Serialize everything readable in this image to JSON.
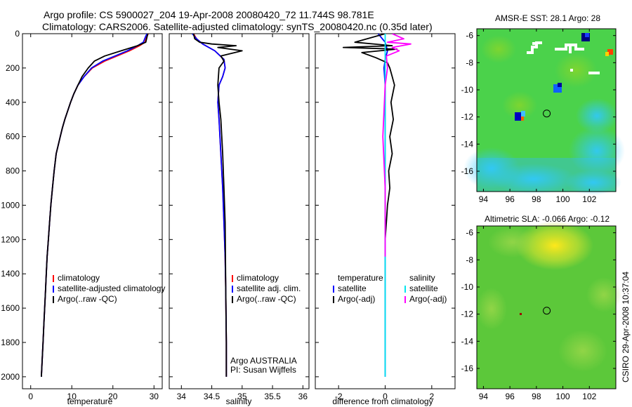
{
  "page": {
    "title_line1": "Argo profile: CS 5900027_204 19-Apr-2008 20080420_72 11.744S 98.781E",
    "title_line2": "Climatology: CARS2006. Satellite-adjusted climatology: synTS_20080420.nc (0.35d later)",
    "side_text": "CSIRO 29-Apr-2008 10:37:04"
  },
  "chart_data": [
    {
      "type": "line",
      "xlabel": "temperature",
      "xlim": [
        -2,
        32
      ],
      "ylim": [
        2070,
        0
      ],
      "xticks": [
        0,
        10,
        20,
        30
      ],
      "yticks": [
        0,
        200,
        400,
        600,
        800,
        1000,
        1200,
        1400,
        1600,
        1800,
        2000
      ],
      "legend": [
        "climatology",
        "satellite-adjusted climatology",
        "Argo(..raw -QC)"
      ],
      "series": [
        {
          "name": "climatology",
          "color": "#ff0000",
          "x": [
            28.6,
            28.2,
            27.8,
            26.5,
            24,
            21,
            18,
            15,
            13,
            11.5,
            10.5,
            9.7,
            9,
            8.3,
            7.7,
            7.2,
            6.7,
            6.2,
            5.7,
            5.3,
            4.9,
            4.6,
            4.3,
            4,
            3.8,
            3.6,
            3.4,
            3.2,
            3,
            2.9,
            2.8,
            2.7,
            2.6
          ],
          "y": [
            0,
            20,
            50,
            70,
            100,
            130,
            160,
            200,
            250,
            300,
            350,
            400,
            450,
            500,
            550,
            600,
            650,
            700,
            800,
            900,
            1000,
            1100,
            1200,
            1300,
            1400,
            1500,
            1600,
            1700,
            1800,
            1850,
            1900,
            1950,
            2000
          ]
        },
        {
          "name": "satellite-adjusted climatology",
          "color": "#0000ff",
          "x": [
            28.3,
            27.9,
            27.4,
            26,
            23.5,
            20.5,
            17.5,
            14.8,
            13,
            11.5,
            10.5,
            9.7,
            9,
            8.3,
            7.7,
            7.2,
            6.7,
            6.2,
            5.7,
            5.3,
            4.9,
            4.6,
            4.3,
            4,
            3.8,
            3.6,
            3.4,
            3.2,
            3,
            2.9,
            2.8,
            2.7,
            2.6
          ],
          "y": [
            0,
            20,
            50,
            70,
            100,
            130,
            160,
            200,
            250,
            300,
            350,
            400,
            450,
            500,
            550,
            600,
            650,
            700,
            800,
            900,
            1000,
            1100,
            1200,
            1300,
            1400,
            1500,
            1600,
            1700,
            1800,
            1850,
            1900,
            1950,
            2000
          ]
        },
        {
          "name": "Argo(..raw -QC)",
          "color": "#000000",
          "x": [
            28.5,
            28.3,
            28,
            26,
            22,
            18,
            15.5,
            14,
            12.5,
            11.5,
            10.5,
            9.7,
            9,
            8.3,
            7.7,
            7.2,
            6.7,
            6.2,
            5.7,
            5.3,
            4.9,
            4.6,
            4.3,
            4,
            3.8,
            3.6,
            3.4,
            3.2,
            3,
            2.9,
            2.8,
            2.7,
            2.6
          ],
          "y": [
            0,
            20,
            50,
            70,
            100,
            130,
            160,
            200,
            250,
            300,
            350,
            400,
            450,
            500,
            550,
            600,
            650,
            700,
            800,
            900,
            1000,
            1100,
            1200,
            1300,
            1400,
            1500,
            1600,
            1700,
            1800,
            1850,
            1900,
            1950,
            2000
          ]
        }
      ]
    },
    {
      "type": "line",
      "xlabel": "salinity",
      "xlim": [
        33.8,
        36.1
      ],
      "ylim": [
        2070,
        0
      ],
      "xticks": [
        34,
        34.5,
        35,
        35.5,
        36
      ],
      "legend": [
        "climatology",
        "satellite adj. clim.",
        "Argo(..raw -QC)"
      ],
      "annotation": [
        "Argo AUSTRALIA",
        "PI: Susan Wijffels"
      ],
      "series": [
        {
          "name": "climatology",
          "color": "#ff0000",
          "x": [
            34.2,
            34.25,
            34.35,
            34.55,
            34.7,
            34.72,
            34.68,
            34.62,
            34.6,
            34.62,
            34.65,
            34.68,
            34.7,
            34.72,
            34.73,
            34.74,
            34.74
          ],
          "y": [
            0,
            30,
            60,
            100,
            150,
            200,
            250,
            300,
            400,
            500,
            700,
            900,
            1100,
            1300,
            1500,
            1800,
            2000
          ]
        },
        {
          "name": "satellite adj. clim.",
          "color": "#0000ff",
          "x": [
            34.18,
            34.25,
            34.35,
            34.55,
            34.7,
            34.72,
            34.68,
            34.62,
            34.6,
            34.62,
            34.65,
            34.68,
            34.7,
            34.72,
            34.73,
            34.74,
            34.74
          ],
          "y": [
            0,
            30,
            60,
            100,
            150,
            200,
            250,
            300,
            400,
            500,
            700,
            900,
            1100,
            1300,
            1500,
            1800,
            2000
          ]
        },
        {
          "name": "Argo(..raw -QC)",
          "color": "#000000",
          "x": [
            34.2,
            34.22,
            34.3,
            34.5,
            34.9,
            34.6,
            35.0,
            34.65,
            34.7,
            34.62,
            34.6,
            34.62,
            34.65,
            34.68,
            34.7,
            34.72,
            34.73,
            34.74,
            34.74
          ],
          "y": [
            0,
            30,
            50,
            60,
            70,
            80,
            100,
            130,
            160,
            200,
            300,
            400,
            500,
            700,
            900,
            1100,
            1500,
            1800,
            2000
          ]
        }
      ]
    },
    {
      "type": "line",
      "xlabel": "difference from climatology",
      "xlim": [
        -3,
        3
      ],
      "ylim": [
        2070,
        0
      ],
      "xticks": [
        -2,
        0,
        2
      ],
      "legend_headers": [
        "temperature",
        "salinity"
      ],
      "legend": [
        "satellite",
        "Argo(-adj)",
        "satellite",
        "Argo(-adj)"
      ],
      "series": [
        {
          "name": "satellite",
          "color": "#0000ff",
          "x": [
            -0.3,
            0,
            0.1,
            0,
            -0.05,
            0,
            0,
            0,
            0
          ],
          "y": [
            0,
            50,
            100,
            150,
            200,
            300,
            500,
            1000,
            2000
          ]
        },
        {
          "name": "Argo(-adj)",
          "color": "#000000",
          "x": [
            0,
            -1.3,
            0.3,
            -1.8,
            0.5,
            -1.0,
            -0.4,
            0.1,
            0.2,
            0.3,
            0.4,
            0.25,
            0.35,
            0.2,
            0.3,
            0.15,
            0.2,
            0.1,
            0.05,
            0
          ],
          "y": [
            0,
            50,
            70,
            80,
            90,
            110,
            140,
            170,
            200,
            250,
            300,
            400,
            500,
            600,
            700,
            800,
            900,
            1000,
            1100,
            1200
          ]
        },
        {
          "name": "satellite",
          "color": "#00e5ee",
          "x": [
            0,
            0,
            0,
            0
          ],
          "y": [
            0,
            500,
            1500,
            2000
          ]
        },
        {
          "name": "Argo(-adj)",
          "color": "#ff00ff",
          "x": [
            0.3,
            0.8,
            0.1,
            1.1,
            0.3,
            0.6,
            0.05,
            0.1,
            0,
            -0.1,
            0,
            0
          ],
          "y": [
            0,
            30,
            50,
            60,
            80,
            100,
            130,
            200,
            300,
            600,
            900,
            1300
          ]
        }
      ]
    },
    {
      "type": "heatmap",
      "title": "AMSR-E SST: 28.1 Argo: 28",
      "xlim": [
        93.5,
        104
      ],
      "ylim": [
        -17.5,
        -5.5
      ],
      "xticks": [
        94,
        96,
        98,
        100,
        102
      ],
      "yticks": [
        -6,
        -8,
        -10,
        -12,
        -14,
        -16
      ],
      "marker": {
        "lon": 98.781,
        "lat": -11.744
      }
    },
    {
      "type": "heatmap",
      "title": "Altimetric SLA: -0.066 Argo: -0.12",
      "xlim": [
        93.5,
        104
      ],
      "ylim": [
        -17.5,
        -5.5
      ],
      "xticks": [
        94,
        96,
        98,
        100,
        102
      ],
      "yticks": [
        -6,
        -8,
        -10,
        -12,
        -14,
        -16
      ],
      "marker": {
        "lon": 98.781,
        "lat": -11.744
      }
    }
  ]
}
